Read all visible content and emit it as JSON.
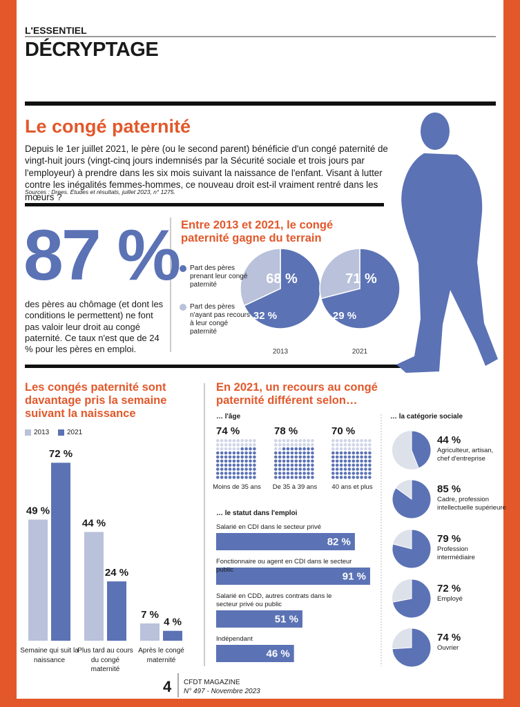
{
  "header": {
    "kicker": "L'ESSENTIEL",
    "title": "DÉCRYPTAGE"
  },
  "article": {
    "title": "Le congé paternité",
    "intro": "Depuis le 1er juillet 2021, le père (ou le second parent) bénéficie d'un congé paternité de vingt-huit jours (vingt-cinq jours indemnisés par la Sécurité sociale et trois jours par l'employeur) à prendre dans les six mois suivant la naissance de l'enfant. Visant à lutter contre les inégalités femmes-hommes, ce nouveau droit est-il vraiment rentré dans les mœurs ?",
    "sources": "Sources : Drees. Études et résultats, juillet 2023, n° 1275."
  },
  "highlight": {
    "figure": "87 %",
    "text": "des pères au chômage (et dont les conditions le permettent) ne font pas valoir leur droit au congé paternité. Ce taux n'est que de 24 % pour les pères en emploi."
  },
  "chart_data": [
    {
      "type": "pie",
      "title": "Entre 2013 et 2021, le congé paternité gagne du terrain",
      "categories": [
        "2013",
        "2021"
      ],
      "series": [
        {
          "name": "Part des pères prenant leur congé paternité",
          "color": "#5b72b5",
          "values": [
            68,
            71
          ],
          "value_labels": [
            "68 %",
            "71 %"
          ]
        },
        {
          "name": "Part des pères n'ayant pas recours à leur congé paternité",
          "color": "#b9c1db",
          "values": [
            32,
            29
          ],
          "value_labels": [
            "32 %",
            "29 %"
          ]
        }
      ]
    },
    {
      "type": "bar",
      "title": "Les congés paternité sont davantage pris la semaine suivant la naissance",
      "categories": [
        "Semaine qui suit la naissance",
        "Plus tard au cours du congé maternité",
        "Après le congé maternité"
      ],
      "series": [
        {
          "name": "2013",
          "color": "#b9c1db",
          "values": [
            49,
            44,
            7
          ],
          "value_labels": [
            "49 %",
            "44 %",
            "7 %"
          ]
        },
        {
          "name": "2021",
          "color": "#5b72b5",
          "values": [
            72,
            24,
            4
          ],
          "value_labels": [
            "72 %",
            "24 %",
            "4 %"
          ]
        }
      ]
    },
    {
      "type": "waffle",
      "title": "En 2021, un recours au congé paternité différent selon…",
      "subtitle": "… l'âge",
      "categories": [
        "Moins de 35 ans",
        "De 35 à 39 ans",
        "40 ans et plus"
      ],
      "values": [
        74,
        78,
        70
      ],
      "value_labels": [
        "74 %",
        "78 %",
        "70 %"
      ],
      "color": "#5b72b5",
      "empty_color": "#cfd5e8"
    },
    {
      "type": "hbar",
      "subtitle": "… le statut dans l'emploi",
      "categories": [
        "Salarié en CDI dans le secteur privé",
        "Fonctionnaire ou agent en CDI dans le secteur public",
        "Salarié en CDD, autres contrats dans le secteur privé ou public",
        "Indépendant"
      ],
      "values": [
        82,
        91,
        51,
        46
      ],
      "value_labels": [
        "82 %",
        "91 %",
        "51 %",
        "46 %"
      ],
      "color": "#5b72b5"
    },
    {
      "type": "pie",
      "subtitle": "… la catégorie sociale",
      "categories": [
        "Agriculteur, artisan, chef d'entreprise",
        "Cadre, profession intellectuelle supérieure",
        "Profession intermédiaire",
        "Employé",
        "Ouvrier"
      ],
      "values": [
        44,
        85,
        79,
        72,
        74
      ],
      "value_labels": [
        "44 %",
        "85 %",
        "79 %",
        "72 %",
        "74 %"
      ],
      "color": "#5b72b5",
      "empty_color": "#dde1ea"
    }
  ],
  "footer": {
    "page": "4",
    "magazine": "CFDT MAGAZINE",
    "issue": "N° 497 - Novembre 2023"
  }
}
